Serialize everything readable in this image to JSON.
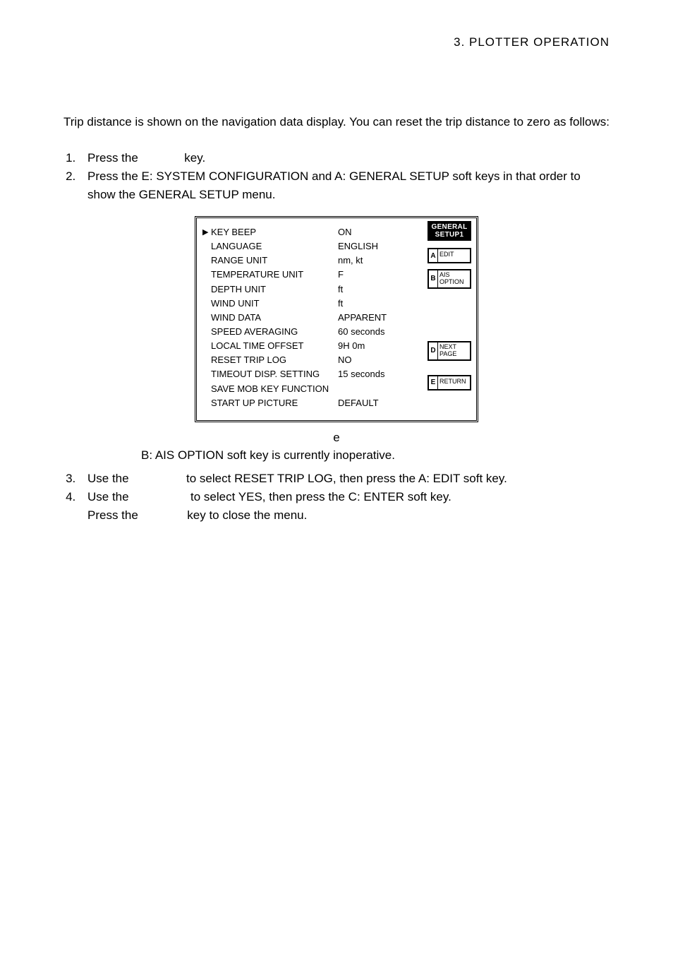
{
  "header": {
    "chapter": "3.  PLOTTER  OPERATION"
  },
  "intro": "Trip distance is shown on the navigation data display. You can reset the trip distance to zero as follows:",
  "steps": {
    "s1_pre": "Press the ",
    "s1_post": " key.",
    "s2": "Press the E: SYSTEM CONFIGURATION and A: GENERAL SETUP soft keys in that order to show the GENERAL SETUP menu.",
    "s3_pre": "Use the ",
    "s3_post": " to select RESET TRIP LOG, then press the A: EDIT soft key.",
    "s4_pre": "Use the ",
    "s4_post": " to select YES, then press the C: ENTER soft key.",
    "s4_line2_pre": "Press the ",
    "s4_line2_post": " key to close the menu."
  },
  "menu": {
    "rows": [
      {
        "label": "KEY BEEP",
        "value": "ON",
        "selected": true
      },
      {
        "label": "LANGUAGE",
        "value": "ENGLISH"
      },
      {
        "label": "RANGE UNIT",
        "value": "nm, kt"
      },
      {
        "label": "TEMPERATURE UNIT",
        "value": "F"
      },
      {
        "label": "DEPTH UNIT",
        "value": "ft"
      },
      {
        "label": "WIND UNIT",
        "value": "ft"
      },
      {
        "label": "WIND DATA",
        "value": "APPARENT"
      },
      {
        "label": "SPEED AVERAGING",
        "value": "60 seconds"
      },
      {
        "label": "LOCAL TIME OFFSET",
        "value": "9H 0m"
      },
      {
        "label": "RESET TRIP LOG",
        "value": "NO"
      },
      {
        "label": "TIMEOUT DISP. SETTING",
        "value": "15 seconds"
      },
      {
        "label": "SAVE MOB KEY FUNCTION",
        "value": ""
      },
      {
        "label": "START UP PICTURE",
        "value": "DEFAULT"
      }
    ],
    "header": {
      "l1": "GENERAL",
      "l2": "SETUP1"
    },
    "softkeys": {
      "A": "EDIT",
      "B": {
        "l1": "AIS",
        "l2": "OPTION"
      },
      "D": {
        "l1": "NEXT",
        "l2": "PAGE"
      },
      "E": "RETURN"
    }
  },
  "caption": "e",
  "note": "B: AIS OPTION soft key is currently inoperative."
}
